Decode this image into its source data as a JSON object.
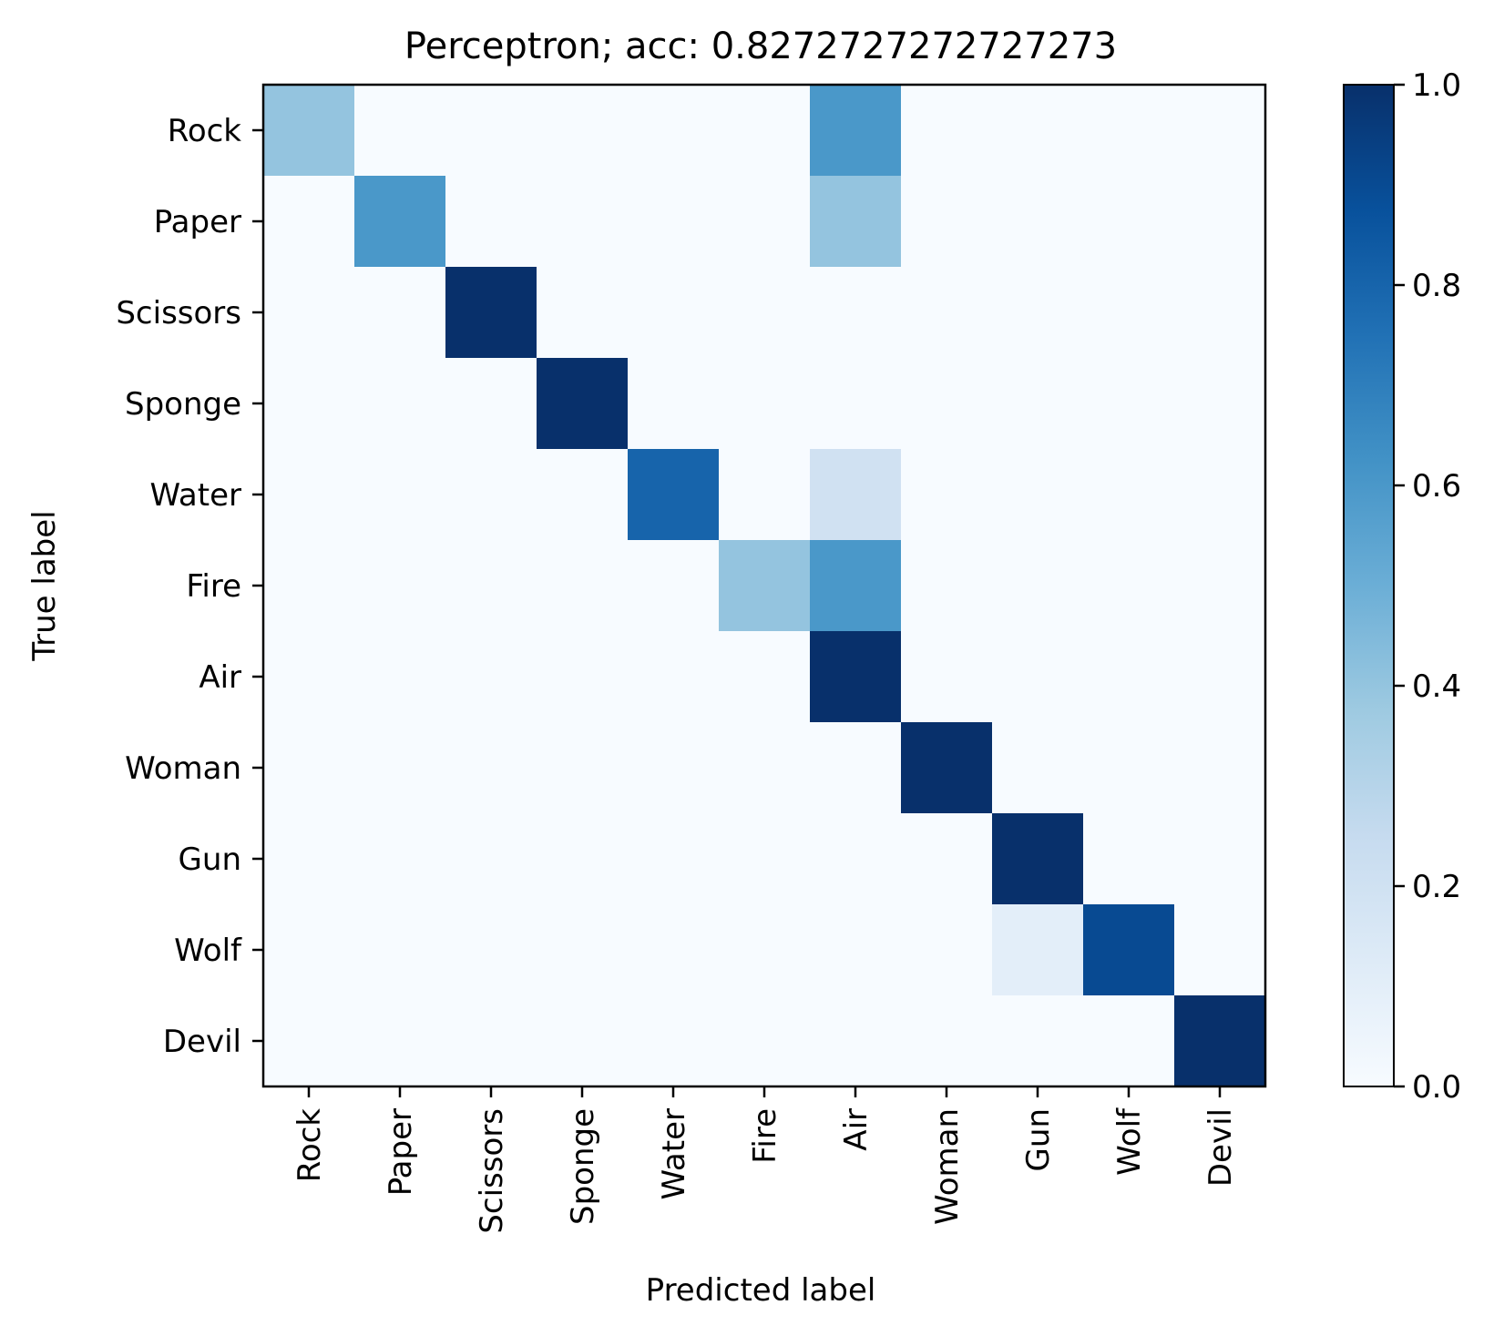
{
  "chart_data": {
    "type": "heatmap",
    "title": "Perceptron; acc: 0.8272727272727273",
    "xlabel": "Predicted label",
    "ylabel": "True label",
    "x_categories": [
      "Rock",
      "Paper",
      "Scissors",
      "Sponge",
      "Water",
      "Fire",
      "Air",
      "Woman",
      "Gun",
      "Wolf",
      "Devil"
    ],
    "y_categories": [
      "Rock",
      "Paper",
      "Scissors",
      "Sponge",
      "Water",
      "Fire",
      "Air",
      "Woman",
      "Gun",
      "Wolf",
      "Devil"
    ],
    "values": [
      [
        0.4,
        0,
        0,
        0,
        0,
        0,
        0.6,
        0,
        0,
        0,
        0
      ],
      [
        0,
        0.6,
        0,
        0,
        0,
        0,
        0.4,
        0,
        0,
        0,
        0
      ],
      [
        0,
        0,
        1.0,
        0,
        0,
        0,
        0,
        0,
        0,
        0,
        0
      ],
      [
        0,
        0,
        0,
        1.0,
        0,
        0,
        0,
        0,
        0,
        0,
        0
      ],
      [
        0,
        0,
        0,
        0,
        0.8,
        0,
        0.2,
        0,
        0,
        0,
        0
      ],
      [
        0,
        0,
        0,
        0,
        0,
        0.4,
        0.6,
        0,
        0,
        0,
        0
      ],
      [
        0,
        0,
        0,
        0,
        0,
        0,
        1.0,
        0,
        0,
        0,
        0
      ],
      [
        0,
        0,
        0,
        0,
        0,
        0,
        0,
        1.0,
        0,
        0,
        0
      ],
      [
        0,
        0,
        0,
        0,
        0,
        0,
        0,
        0,
        1.0,
        0,
        0
      ],
      [
        0,
        0,
        0,
        0,
        0,
        0,
        0,
        0,
        0.1,
        0.9,
        0
      ],
      [
        0,
        0,
        0,
        0,
        0,
        0,
        0,
        0,
        0,
        0,
        1.0
      ]
    ],
    "colorbar": {
      "range": [
        0.0,
        1.0
      ],
      "ticks": [
        "0.0",
        "0.2",
        "0.4",
        "0.6",
        "0.8",
        "1.0"
      ],
      "colormap": "Blues",
      "color_stops": [
        "#f7fbff",
        "#deebf7",
        "#c6dbef",
        "#9ecae1",
        "#6baed6",
        "#4292c6",
        "#2171b5",
        "#08519c",
        "#08306b"
      ]
    }
  }
}
